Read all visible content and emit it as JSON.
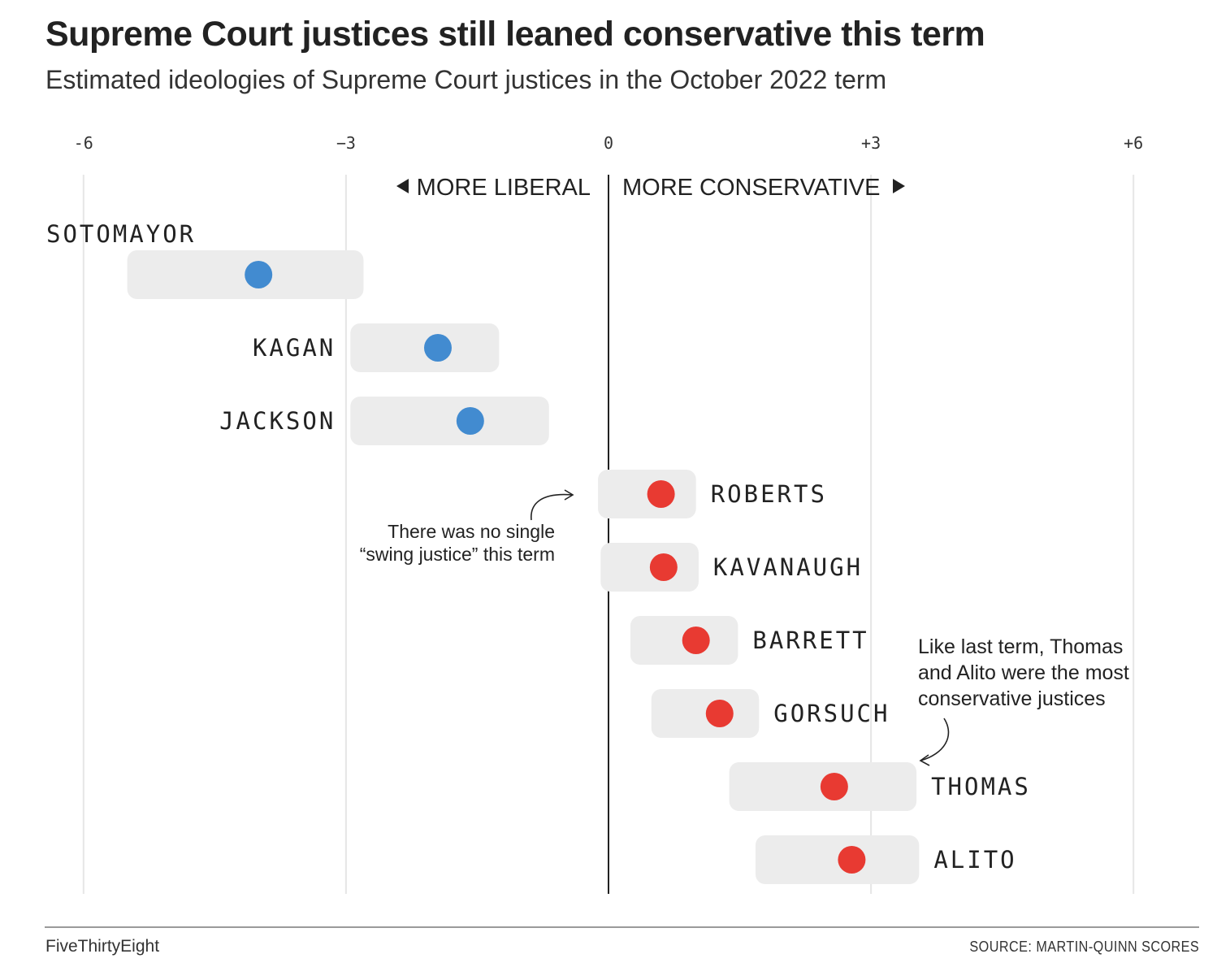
{
  "header": {
    "title": "Supreme Court justices still leaned conservative this term",
    "subtitle": "Estimated ideologies of Supreme Court justices in the October 2022 term"
  },
  "footer": {
    "brand": "FiveThirtyEight",
    "source": "SOURCE: MARTIN-QUINN SCORES"
  },
  "colors": {
    "liberal": "#428bd0",
    "conservative": "#e83a32",
    "band": "#ececec",
    "gridline": "#e6e6e6",
    "zero_line": "#222222"
  },
  "chart_data": {
    "type": "dot-range",
    "title": "Supreme Court justices still leaned conservative this term",
    "subtitle": "Estimated ideologies of Supreme Court justices in the October 2022 term",
    "xlim": [
      -6,
      6
    ],
    "x_ticks": [
      {
        "value": -6,
        "label": "-6"
      },
      {
        "value": -3,
        "label": "−3"
      },
      {
        "value": 0,
        "label": "0"
      },
      {
        "value": 3,
        "label": "+3"
      },
      {
        "value": 6,
        "label": "+6"
      }
    ],
    "direction_labels": {
      "liberal": "MORE LIBERAL",
      "conservative": "MORE CONSERVATIVE"
    },
    "series": [
      {
        "name": "SOTOMAYOR",
        "value": -4.0,
        "low": -5.5,
        "high": -2.8,
        "side": "liberal"
      },
      {
        "name": "KAGAN",
        "value": -1.95,
        "low": -2.95,
        "high": -1.25,
        "side": "liberal"
      },
      {
        "name": "JACKSON",
        "value": -1.58,
        "low": -2.95,
        "high": -0.68,
        "side": "liberal"
      },
      {
        "name": "ROBERTS",
        "value": 0.6,
        "low": -0.12,
        "high": 1.0,
        "side": "conservative"
      },
      {
        "name": "KAVANAUGH",
        "value": 0.63,
        "low": -0.09,
        "high": 1.03,
        "side": "conservative"
      },
      {
        "name": "BARRETT",
        "value": 1.0,
        "low": 0.25,
        "high": 1.48,
        "side": "conservative"
      },
      {
        "name": "GORSUCH",
        "value": 1.27,
        "low": 0.49,
        "high": 1.72,
        "side": "conservative"
      },
      {
        "name": "THOMAS",
        "value": 2.58,
        "low": 1.38,
        "high": 3.52,
        "side": "conservative"
      },
      {
        "name": "ALITO",
        "value": 2.78,
        "low": 1.68,
        "high": 3.55,
        "side": "conservative"
      }
    ],
    "annotations": [
      {
        "lines": [
          "There was no single",
          "“swing justice” this term"
        ]
      },
      {
        "lines": [
          "Like last term, Thomas",
          "and Alito were the most",
          "conservative justices"
        ]
      }
    ]
  }
}
